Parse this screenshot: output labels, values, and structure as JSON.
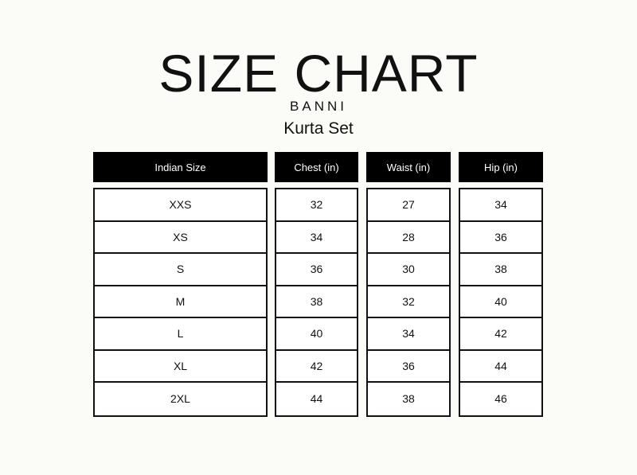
{
  "title": "SIZE CHART",
  "brand": "BANNI",
  "subtitle": "Kurta Set",
  "columns": [
    {
      "header": "Indian Size",
      "values": [
        "XXS",
        "XS",
        "S",
        "M",
        "L",
        "XL",
        "2XL"
      ]
    },
    {
      "header": "Chest (in)",
      "values": [
        "32",
        "34",
        "36",
        "38",
        "40",
        "42",
        "44"
      ]
    },
    {
      "header": "Waist (in)",
      "values": [
        "27",
        "28",
        "30",
        "32",
        "34",
        "36",
        "38"
      ]
    },
    {
      "header": "Hip (in)",
      "values": [
        "34",
        "36",
        "38",
        "40",
        "42",
        "44",
        "46"
      ]
    }
  ]
}
